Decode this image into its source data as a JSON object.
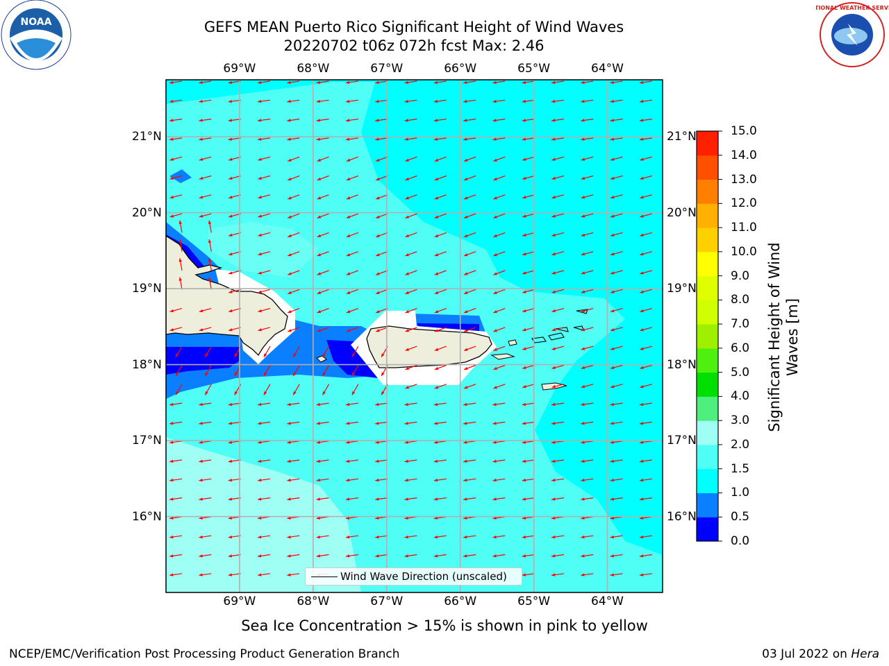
{
  "title": {
    "line1": "GEFS MEAN Puerto Rico Significant Height of Wind Waves",
    "line2": "20220702 t06z 072h fcst   Max: 2.46"
  },
  "logos": {
    "left": "noaa-logo",
    "right": "nws-logo",
    "left_text": "NOAA",
    "right_text": "NATIONAL WEATHER SERVICE"
  },
  "map": {
    "lon_labels": [
      "69°W",
      "68°W",
      "67°W",
      "66°W",
      "65°W",
      "64°W"
    ],
    "lat_labels": [
      "21°N",
      "20°N",
      "19°N",
      "18°N",
      "17°N",
      "16°N"
    ],
    "lon_values": [
      -69,
      -68,
      -67,
      -66,
      -65,
      -64
    ],
    "lat_values": [
      21,
      20,
      19,
      18,
      17,
      16
    ],
    "lon_range": [
      -70,
      -63.25
    ],
    "lat_range": [
      15,
      21.75
    ],
    "arrow_color": "#ff0000",
    "land_color": "#eeeedd",
    "legend_label": "Wind Wave Direction (unscaled)"
  },
  "colorbar": {
    "title": "Significant Height of Wind Waves [m]",
    "levels": [
      0.0,
      0.5,
      1.0,
      1.5,
      2.0,
      3.0,
      4.0,
      5.0,
      6.0,
      7.0,
      8.0,
      9.0,
      10.0,
      11.0,
      12.0,
      13.0,
      14.0,
      15.0
    ],
    "tick_labels": [
      "0.0",
      "0.5",
      "1.0",
      "1.5",
      "2.0",
      "3.0",
      "4.0",
      "5.0",
      "6.0",
      "7.0",
      "8.0",
      "9.0",
      "10.0",
      "11.0",
      "12.0",
      "13.0",
      "14.0",
      "15.0"
    ],
    "colors": [
      "#0000ff",
      "#0a7fff",
      "#00ffff",
      "#4ffff5",
      "#9ffff5",
      "#4fef7f",
      "#00df00",
      "#4fef10",
      "#9ff000",
      "#cfff00",
      "#dfff00",
      "#ffff00",
      "#ffd000",
      "#ffb000",
      "#ff8000",
      "#ff5000",
      "#ff2000"
    ]
  },
  "footnote": "Sea Ice Concentration > 15% is shown in pink to yellow",
  "footer": {
    "left": "NCEP/EMC/Verification Post Processing Product Generation Branch",
    "right_date": "03 Jul 2022 on ",
    "right_host": "Hera"
  }
}
